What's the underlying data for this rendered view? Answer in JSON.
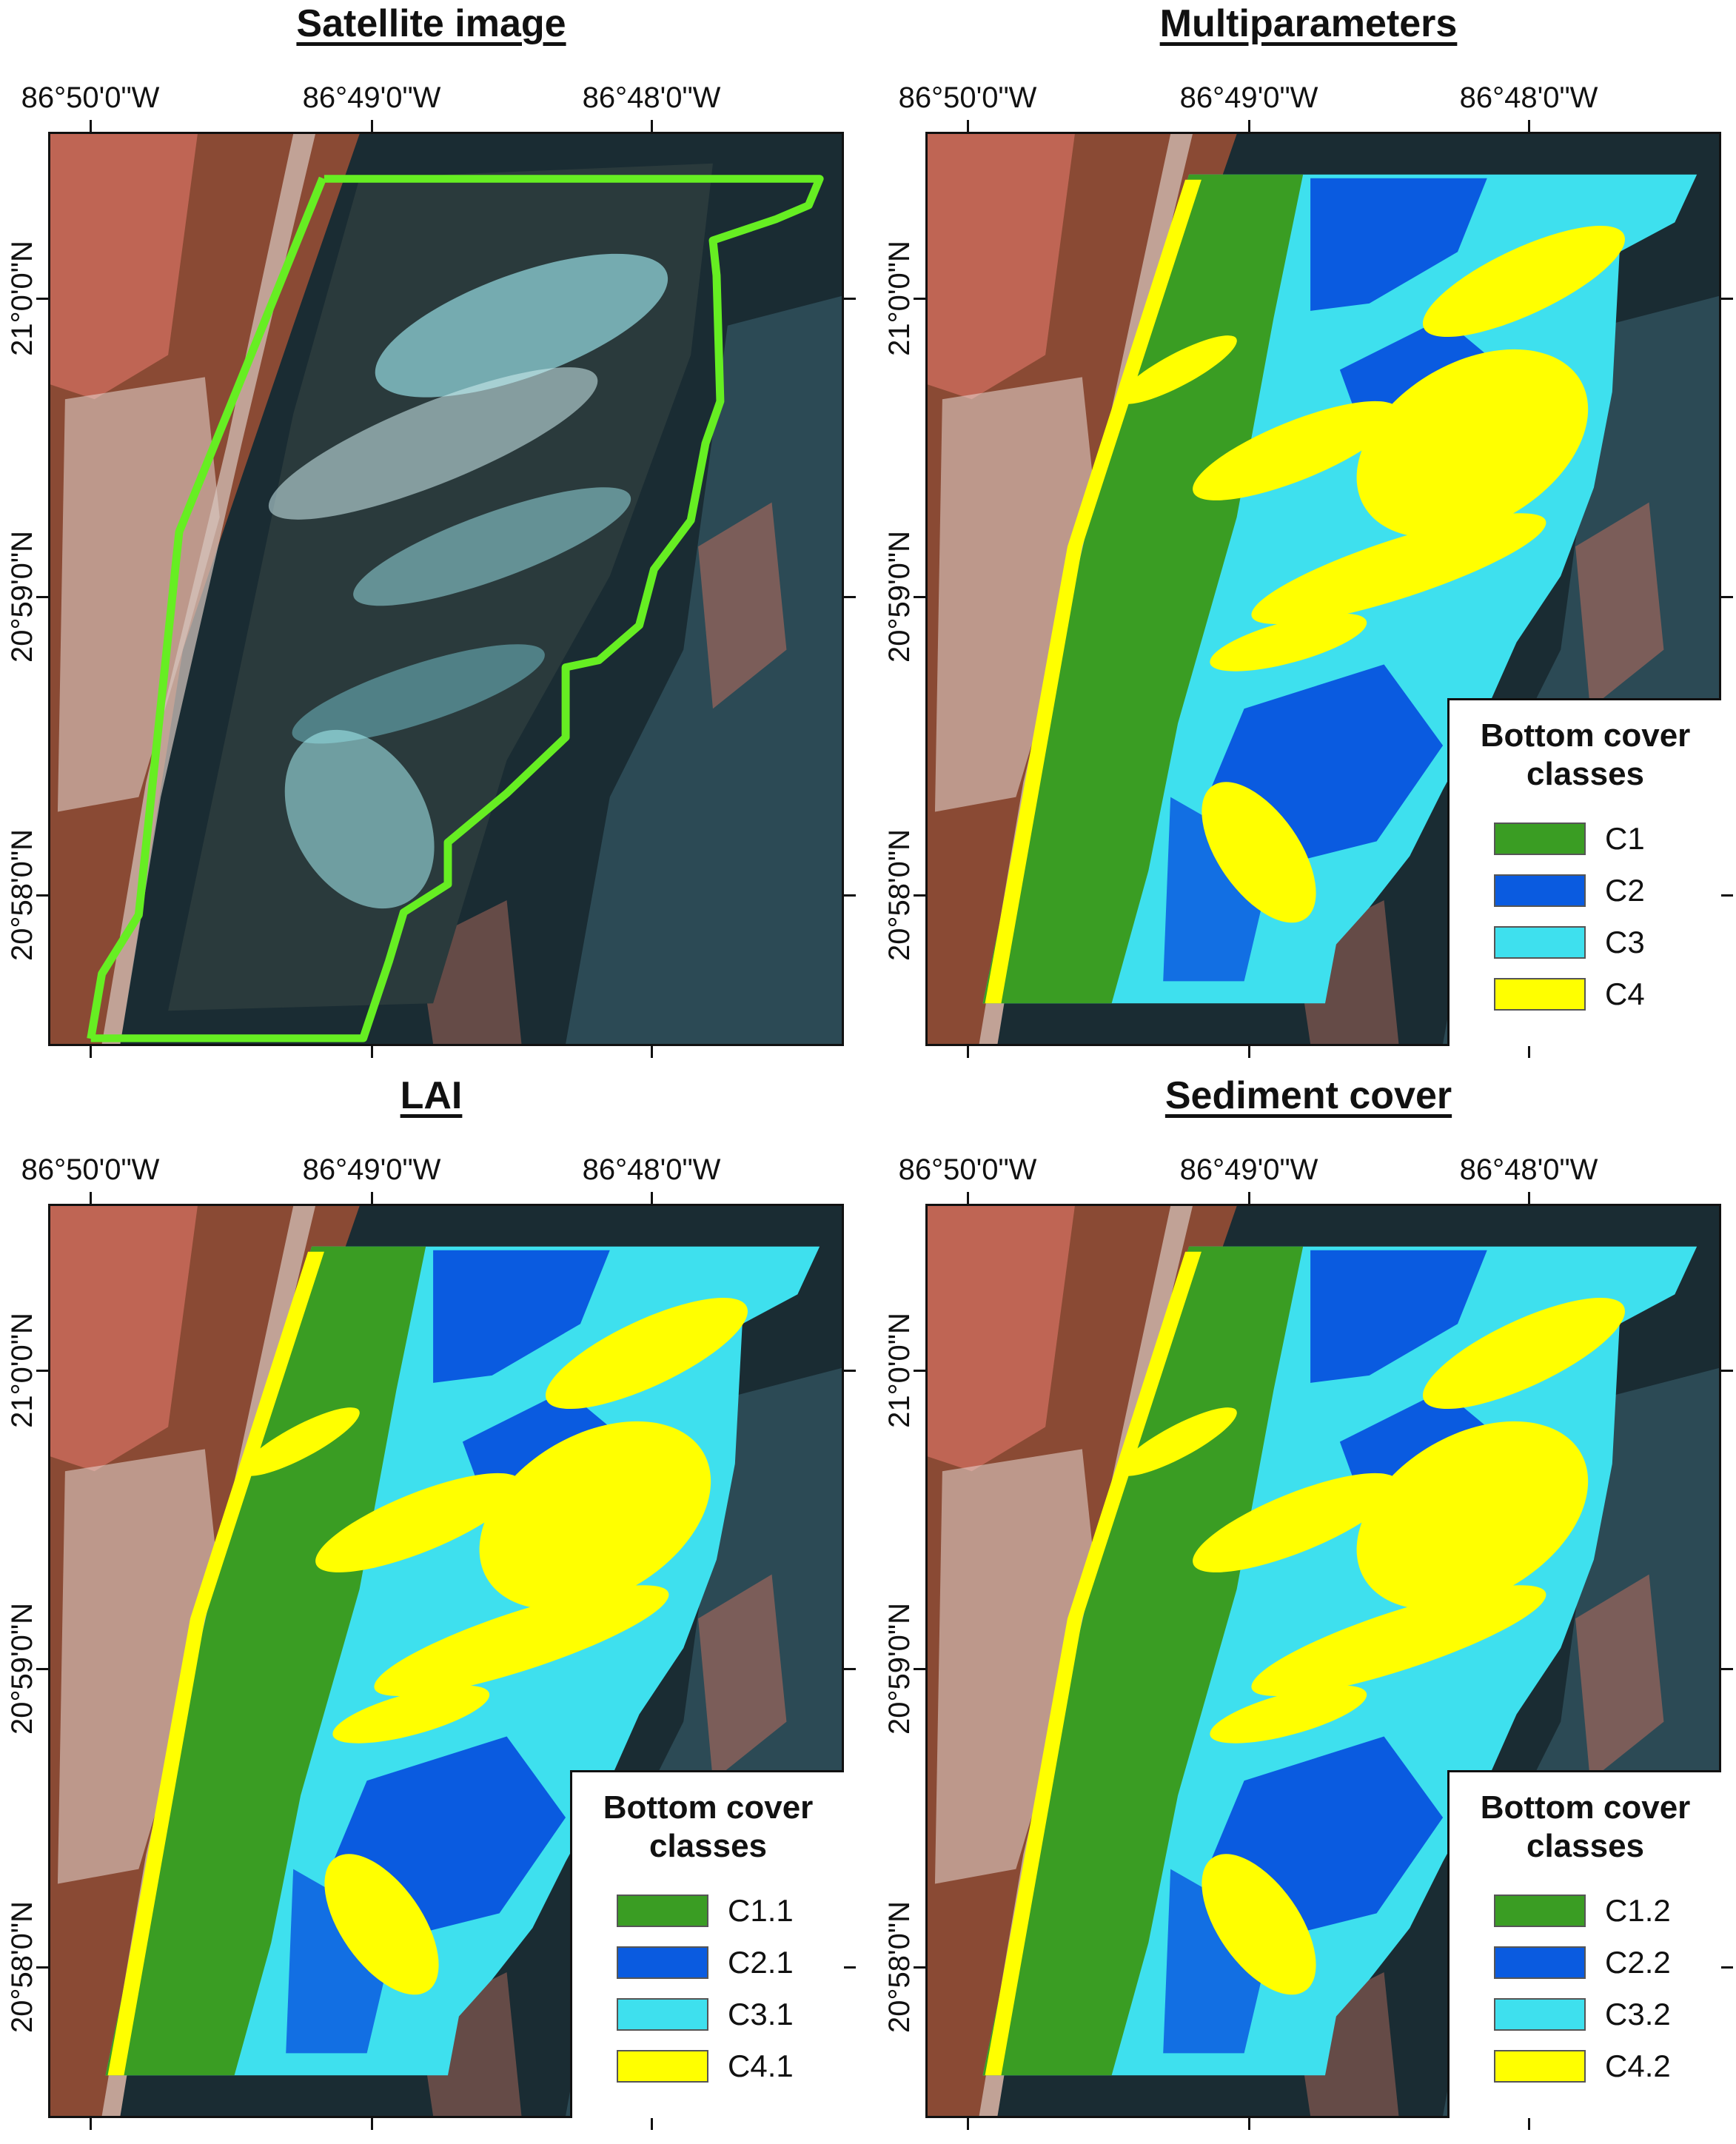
{
  "panels": [
    {
      "title": "Satellite image",
      "lon_labels": [
        "86°50'0\"W",
        "86°49'0\"W",
        "86°48'0\"W"
      ],
      "lat_labels": [
        "21°0'0\"N",
        "20°59'0\"N",
        "20°58'0\"N"
      ],
      "legend": null,
      "overlay": "aoi-outline"
    },
    {
      "title": "Multiparameters",
      "lon_labels": [
        "86°50'0\"W",
        "86°49'0\"W",
        "86°48'0\"W"
      ],
      "lat_labels": [
        "21°0'0\"N",
        "20°59'0\"N",
        "20°58'0\"N"
      ],
      "legend": {
        "title_line1": "Bottom cover",
        "title_line2": "classes",
        "items": [
          {
            "label": "C1",
            "color": "#3a9d23"
          },
          {
            "label": "C2",
            "color": "#0a5be0"
          },
          {
            "label": "C3",
            "color": "#3ee0ee"
          },
          {
            "label": "C4",
            "color": "#ffff00"
          }
        ]
      },
      "overlay": "classification"
    },
    {
      "title": "LAI",
      "lon_labels": [
        "86°50'0\"W",
        "86°49'0\"W",
        "86°48'0\"W"
      ],
      "lat_labels": [
        "21°0'0\"N",
        "20°59'0\"N",
        "20°58'0\"N"
      ],
      "legend": {
        "title_line1": "Bottom cover",
        "title_line2": "classes",
        "items": [
          {
            "label": "C1.1",
            "color": "#3a9d23"
          },
          {
            "label": "C2.1",
            "color": "#0a5be0"
          },
          {
            "label": "C3.1",
            "color": "#3ee0ee"
          },
          {
            "label": "C4.1",
            "color": "#ffff00"
          }
        ]
      },
      "overlay": "classification"
    },
    {
      "title": "Sediment cover",
      "lon_labels": [
        "86°50'0\"W",
        "86°49'0\"W",
        "86°48'0\"W"
      ],
      "lat_labels": [
        "21°0'0\"N",
        "20°59'0\"N",
        "20°58'0\"N"
      ],
      "legend": {
        "title_line1": "Bottom cover",
        "title_line2": "classes",
        "items": [
          {
            "label": "C1.2",
            "color": "#3a9d23"
          },
          {
            "label": "C2.2",
            "color": "#0a5be0"
          },
          {
            "label": "C3.2",
            "color": "#3ee0ee"
          },
          {
            "label": "C4.2",
            "color": "#ffff00"
          }
        ]
      },
      "overlay": "classification"
    }
  ],
  "colors": {
    "land": "#8a4a34",
    "land_red": "#c86a5a",
    "urban": "#e8d8d4",
    "water_deep": "#1a2c33",
    "water_mid": "#2c4a55",
    "aoi_outline": "#66ee22"
  }
}
